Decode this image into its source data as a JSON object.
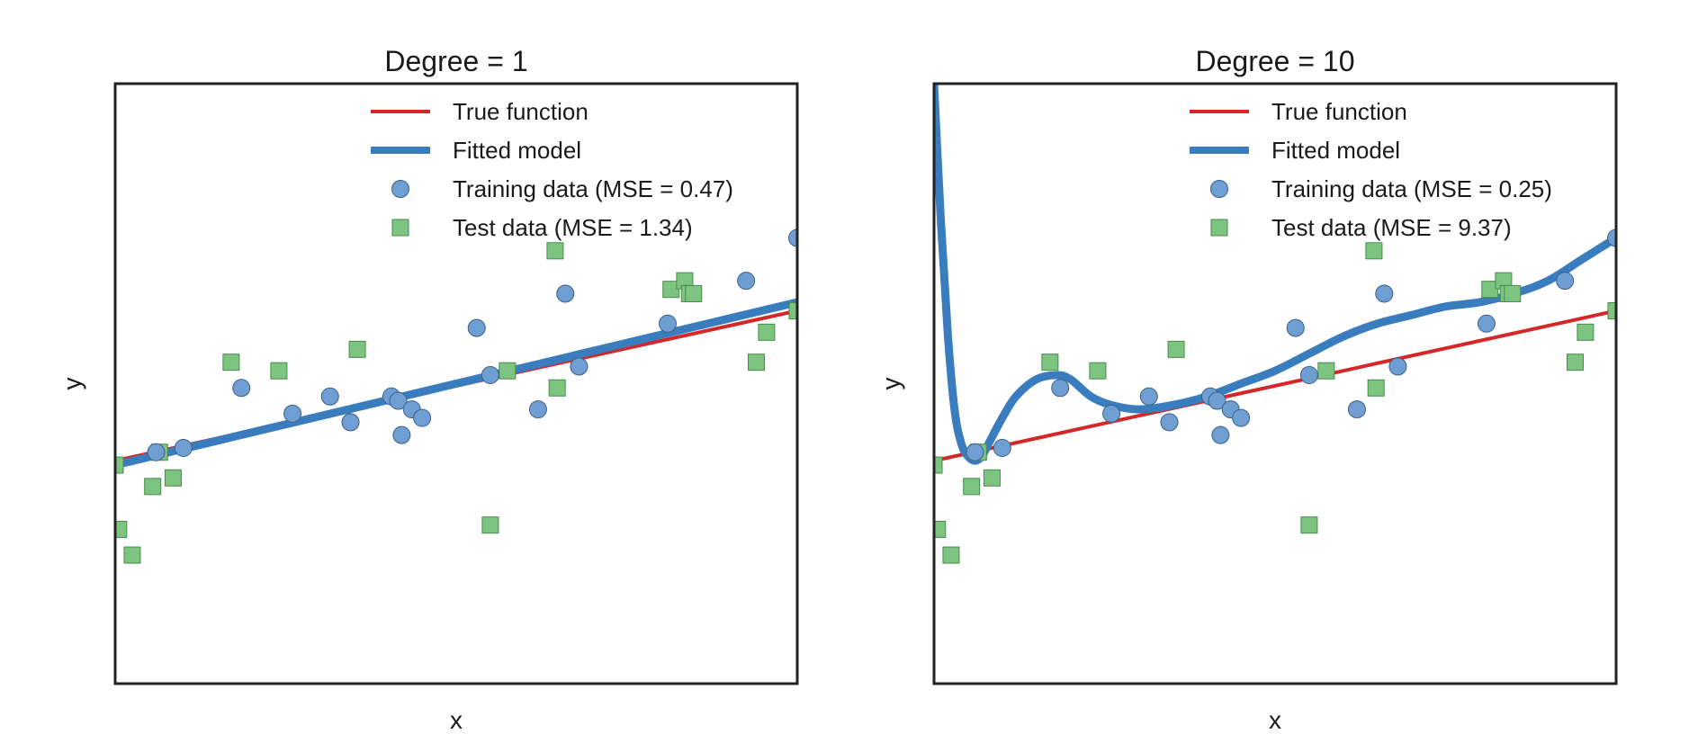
{
  "chart_data": [
    {
      "type": "scatter",
      "title": "Degree = 1",
      "xlabel": "x",
      "ylabel": "y",
      "xlim": [
        0,
        1
      ],
      "ylim": [
        -3.6,
        3.4
      ],
      "grid": false,
      "ticks_shown": false,
      "legend_position": "top-center",
      "colors": {
        "true_function": "#d62728",
        "fitted_model": "#3a7dbf",
        "training": "#6f9fd2",
        "test": "#7cc47f"
      },
      "legend": {
        "true_function": "True function",
        "fitted_model": "Fitted model",
        "training": "Training data (MSE = 0.47)",
        "test": "Test data (MSE = 1.34)"
      },
      "true_function": {
        "x": [
          0,
          1
        ],
        "y": [
          -1.0,
          0.75
        ]
      },
      "fitted_model": {
        "x": [
          0,
          1
        ],
        "y": [
          -1.05,
          0.85
        ]
      },
      "training_data": {
        "x": [
          0.06,
          0.1,
          0.185,
          0.26,
          0.315,
          0.345,
          0.405,
          0.415,
          0.42,
          0.435,
          0.45,
          0.53,
          0.55,
          0.62,
          0.66,
          0.68,
          0.81,
          0.925,
          1.0
        ],
        "y": [
          -0.9,
          -0.85,
          -0.15,
          -0.45,
          -0.25,
          -0.55,
          -0.25,
          -0.3,
          -0.7,
          -0.4,
          -0.5,
          0.55,
          0.0,
          -0.4,
          0.95,
          0.1,
          0.6,
          1.1,
          1.6
        ]
      },
      "test_data": {
        "x": [
          0.0,
          0.005,
          0.025,
          0.055,
          0.065,
          0.085,
          0.17,
          0.24,
          0.355,
          0.55,
          0.575,
          0.645,
          0.648,
          0.815,
          0.835,
          0.842,
          0.848,
          0.94,
          0.955,
          1.0
        ],
        "y": [
          -1.05,
          -1.8,
          -2.1,
          -1.3,
          -0.9,
          -1.2,
          0.15,
          0.05,
          0.3,
          -1.75,
          0.05,
          1.45,
          -0.15,
          1.0,
          1.1,
          0.95,
          0.95,
          0.15,
          0.5,
          0.75
        ]
      }
    },
    {
      "type": "scatter",
      "title": "Degree = 10",
      "xlabel": "x",
      "ylabel": "y",
      "xlim": [
        0,
        1
      ],
      "ylim": [
        -3.6,
        3.4
      ],
      "grid": false,
      "ticks_shown": false,
      "legend_position": "top-center",
      "colors": {
        "true_function": "#d62728",
        "fitted_model": "#3a7dbf",
        "training": "#6f9fd2",
        "test": "#7cc47f"
      },
      "legend": {
        "true_function": "True function",
        "fitted_model": "Fitted model",
        "training": "Training data (MSE = 0.25)",
        "test": "Test data (MSE = 9.37)"
      },
      "true_function": {
        "x": [
          0,
          1
        ],
        "y": [
          -1.0,
          0.75
        ]
      },
      "fitted_model": {
        "x": [
          0.0,
          0.01,
          0.02,
          0.03,
          0.04,
          0.05,
          0.06,
          0.07,
          0.08,
          0.1,
          0.12,
          0.15,
          0.18,
          0.2,
          0.23,
          0.26,
          0.3,
          0.35,
          0.4,
          0.45,
          0.5,
          0.55,
          0.6,
          0.65,
          0.7,
          0.75,
          0.8,
          0.85,
          0.9,
          0.95,
          1.0
        ],
        "y": [
          3.4,
          1.8,
          0.5,
          -0.4,
          -0.8,
          -0.95,
          -1.0,
          -0.95,
          -0.8,
          -0.5,
          -0.25,
          -0.05,
          0.0,
          -0.05,
          -0.25,
          -0.35,
          -0.4,
          -0.35,
          -0.25,
          -0.1,
          0.05,
          0.25,
          0.45,
          0.6,
          0.7,
          0.8,
          0.85,
          0.95,
          1.1,
          1.35,
          1.6
        ]
      },
      "training_data": {
        "x": [
          0.06,
          0.1,
          0.185,
          0.26,
          0.315,
          0.345,
          0.405,
          0.415,
          0.42,
          0.435,
          0.45,
          0.53,
          0.55,
          0.62,
          0.66,
          0.68,
          0.81,
          0.925,
          1.0
        ],
        "y": [
          -0.9,
          -0.85,
          -0.15,
          -0.45,
          -0.25,
          -0.55,
          -0.25,
          -0.3,
          -0.7,
          -0.4,
          -0.5,
          0.55,
          0.0,
          -0.4,
          0.95,
          0.1,
          0.6,
          1.1,
          1.6
        ]
      },
      "test_data": {
        "x": [
          0.0,
          0.005,
          0.025,
          0.055,
          0.065,
          0.085,
          0.17,
          0.24,
          0.355,
          0.55,
          0.575,
          0.645,
          0.648,
          0.815,
          0.835,
          0.842,
          0.848,
          0.94,
          0.955,
          1.0
        ],
        "y": [
          -1.05,
          -1.8,
          -2.1,
          -1.3,
          -0.9,
          -1.2,
          0.15,
          0.05,
          0.3,
          -1.75,
          0.05,
          1.45,
          -0.15,
          1.0,
          1.1,
          0.95,
          0.95,
          0.15,
          0.5,
          0.75
        ]
      }
    }
  ]
}
